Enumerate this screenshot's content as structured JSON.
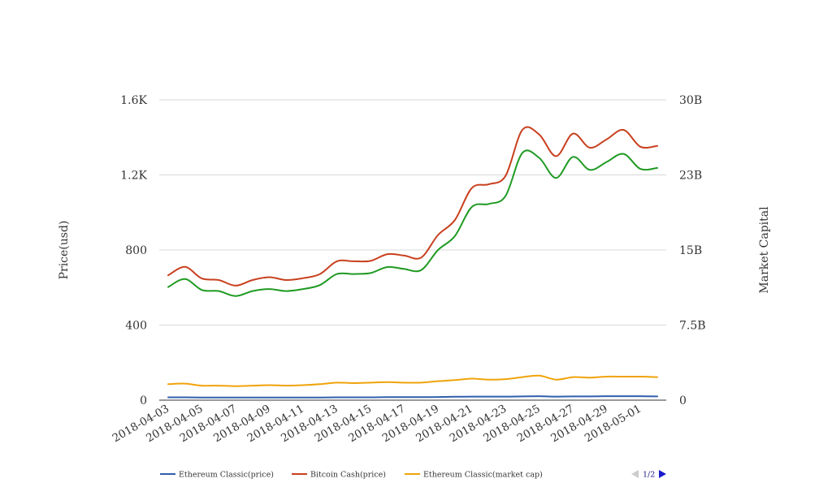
{
  "chart_data": {
    "type": "line",
    "x": [
      "2018-04-03",
      "2018-04-04",
      "2018-04-05",
      "2018-04-06",
      "2018-04-07",
      "2018-04-08",
      "2018-04-09",
      "2018-04-10",
      "2018-04-11",
      "2018-04-12",
      "2018-04-13",
      "2018-04-14",
      "2018-04-15",
      "2018-04-16",
      "2018-04-17",
      "2018-04-18",
      "2018-04-19",
      "2018-04-20",
      "2018-04-21",
      "2018-04-22",
      "2018-04-23",
      "2018-04-24",
      "2018-04-25",
      "2018-04-26",
      "2018-04-27",
      "2018-04-28",
      "2018-04-29",
      "2018-04-30",
      "2018-05-01",
      "2018-05-02"
    ],
    "x_tick_labels": [
      "2018-04-03",
      "2018-04-05",
      "2018-04-07",
      "2018-04-09",
      "2018-04-11",
      "2018-04-13",
      "2018-04-15",
      "2018-04-17",
      "2018-04-19",
      "2018-04-21",
      "2018-04-23",
      "2018-04-25",
      "2018-04-27",
      "2018-04-29",
      "2018-05-01"
    ],
    "ylabel": "Price(usd)",
    "y2label": "Market Capital",
    "ylim": [
      0,
      1600
    ],
    "y2lim": [
      0,
      30000000000
    ],
    "y_ticks": [
      "0",
      "400",
      "800",
      "1.2K",
      "1.6K"
    ],
    "y2_ticks": [
      "0",
      "7.5B",
      "15B",
      "23B",
      "30B"
    ],
    "grid": true,
    "legend_position": "bottom",
    "series": [
      {
        "name": "Ethereum Classic(price)",
        "axis": "left",
        "color": "#2f5fad",
        "values": [
          15,
          15,
          14,
          14,
          14,
          14,
          14,
          14,
          14,
          14,
          15,
          15,
          15,
          16,
          16,
          16,
          17,
          18,
          19,
          19,
          19,
          20,
          21,
          19,
          20,
          20,
          21,
          21,
          21,
          20
        ]
      },
      {
        "name": "Bitcoin Cash(price)",
        "axis": "left",
        "color": "#c8401e",
        "values": [
          665,
          710,
          648,
          640,
          610,
          640,
          655,
          640,
          650,
          672,
          740,
          740,
          742,
          778,
          770,
          760,
          880,
          960,
          1130,
          1150,
          1195,
          1440,
          1415,
          1300,
          1420,
          1345,
          1390,
          1440,
          1350,
          1355
        ]
      },
      {
        "name": "Ethereum Classic(market cap)",
        "axis": "right",
        "color": "#f0a30a",
        "values": [
          1600000000,
          1650000000,
          1450000000,
          1450000000,
          1400000000,
          1450000000,
          1500000000,
          1450000000,
          1500000000,
          1600000000,
          1750000000,
          1700000000,
          1750000000,
          1800000000,
          1750000000,
          1750000000,
          1900000000,
          2000000000,
          2150000000,
          2050000000,
          2100000000,
          2300000000,
          2450000000,
          2050000000,
          2300000000,
          2250000000,
          2350000000,
          2350000000,
          2350000000,
          2300000000
        ]
      },
      {
        "axis": "right",
        "color": "#1f9a22",
        "values": [
          11300000000,
          12100000000,
          11000000000,
          10900000000,
          10400000000,
          10900000000,
          11100000000,
          10900000000,
          11100000000,
          11500000000,
          12600000000,
          12600000000,
          12700000000,
          13300000000,
          13100000000,
          13000000000,
          15000000000,
          16400000000,
          19300000000,
          19600000000,
          20400000000,
          24700000000,
          24200000000,
          22200000000,
          24300000000,
          23000000000,
          23800000000,
          24600000000,
          23100000000,
          23200000000
        ]
      }
    ],
    "pager": "1/2"
  }
}
